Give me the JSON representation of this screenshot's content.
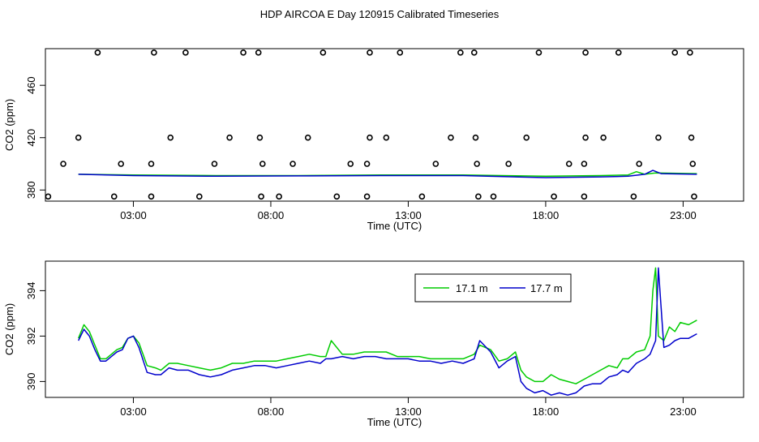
{
  "figure_title": "HDP AIRCOA E  Day 120915  Calibrated Timeseries",
  "colors": {
    "series_a": "#00cc00",
    "series_b": "#0000cc",
    "axis": "#000000"
  },
  "chart_data": [
    {
      "type": "scatter",
      "xlabel": "Time (UTC)",
      "ylabel": "CO2 (ppm)",
      "xlim": [
        -0.2,
        25.2
      ],
      "ylim": [
        371.5,
        488
      ],
      "x_ticks": [
        {
          "value": 3,
          "label": "03:00"
        },
        {
          "value": 8,
          "label": "08:00"
        },
        {
          "value": 13,
          "label": "13:00"
        },
        {
          "value": 18,
          "label": "18:00"
        },
        {
          "value": 23,
          "label": "23:00"
        }
      ],
      "y_ticks": [
        {
          "value": 380,
          "label": "380"
        },
        {
          "value": 420,
          "label": "420"
        },
        {
          "value": 460,
          "label": "460"
        }
      ],
      "lines": [
        {
          "name": "",
          "color": "#00cc00",
          "x": [
            1,
            3,
            6,
            9,
            12,
            15,
            18,
            20,
            21,
            21.3,
            21.6,
            22,
            23.5
          ],
          "y": [
            392,
            391.5,
            391,
            391,
            391.5,
            391.5,
            390.5,
            391,
            391.5,
            394,
            392,
            393,
            392.5
          ]
        },
        {
          "name": "",
          "color": "#0000cc",
          "x": [
            1,
            3,
            6,
            9,
            12,
            15,
            18,
            20,
            21,
            21.6,
            21.9,
            22.2,
            23.5
          ],
          "y": [
            392,
            391,
            390.5,
            390.8,
            391,
            391,
            389.5,
            390,
            390.5,
            392,
            395,
            392.5,
            392
          ]
        }
      ],
      "points": [
        {
          "x": 1.7,
          "y": 485
        },
        {
          "x": 3.75,
          "y": 485
        },
        {
          "x": 4.9,
          "y": 485
        },
        {
          "x": 7.0,
          "y": 485
        },
        {
          "x": 7.55,
          "y": 485
        },
        {
          "x": 9.9,
          "y": 485
        },
        {
          "x": 11.6,
          "y": 485
        },
        {
          "x": 12.7,
          "y": 485
        },
        {
          "x": 14.9,
          "y": 485
        },
        {
          "x": 15.4,
          "y": 485
        },
        {
          "x": 17.75,
          "y": 485
        },
        {
          "x": 19.45,
          "y": 485
        },
        {
          "x": 20.65,
          "y": 485
        },
        {
          "x": 22.7,
          "y": 485
        },
        {
          "x": 23.25,
          "y": 485
        },
        {
          "x": 1.0,
          "y": 420
        },
        {
          "x": 4.35,
          "y": 420
        },
        {
          "x": 6.5,
          "y": 420
        },
        {
          "x": 7.6,
          "y": 420
        },
        {
          "x": 9.35,
          "y": 420
        },
        {
          "x": 11.6,
          "y": 420
        },
        {
          "x": 12.2,
          "y": 420
        },
        {
          "x": 14.55,
          "y": 420
        },
        {
          "x": 15.45,
          "y": 420
        },
        {
          "x": 17.3,
          "y": 420
        },
        {
          "x": 19.45,
          "y": 420
        },
        {
          "x": 20.1,
          "y": 420
        },
        {
          "x": 22.1,
          "y": 420
        },
        {
          "x": 23.3,
          "y": 420
        },
        {
          "x": 0.45,
          "y": 400
        },
        {
          "x": 2.55,
          "y": 400
        },
        {
          "x": 3.65,
          "y": 400
        },
        {
          "x": 5.95,
          "y": 400
        },
        {
          "x": 7.7,
          "y": 400
        },
        {
          "x": 8.8,
          "y": 400
        },
        {
          "x": 10.9,
          "y": 400
        },
        {
          "x": 11.5,
          "y": 400
        },
        {
          "x": 14.0,
          "y": 400
        },
        {
          "x": 15.5,
          "y": 400
        },
        {
          "x": 16.65,
          "y": 400
        },
        {
          "x": 18.85,
          "y": 400
        },
        {
          "x": 19.4,
          "y": 400
        },
        {
          "x": 21.4,
          "y": 400
        },
        {
          "x": 23.35,
          "y": 400
        },
        {
          "x": -0.1,
          "y": 375
        },
        {
          "x": 2.3,
          "y": 375
        },
        {
          "x": 3.65,
          "y": 375
        },
        {
          "x": 5.4,
          "y": 375
        },
        {
          "x": 7.65,
          "y": 375
        },
        {
          "x": 8.3,
          "y": 375
        },
        {
          "x": 10.4,
          "y": 375
        },
        {
          "x": 11.5,
          "y": 375
        },
        {
          "x": 13.5,
          "y": 375
        },
        {
          "x": 15.55,
          "y": 375
        },
        {
          "x": 16.1,
          "y": 375
        },
        {
          "x": 18.3,
          "y": 375
        },
        {
          "x": 19.4,
          "y": 375
        },
        {
          "x": 21.2,
          "y": 375
        },
        {
          "x": 23.4,
          "y": 375
        }
      ]
    },
    {
      "type": "line",
      "xlabel": "Time (UTC)",
      "ylabel": "CO2 (ppm)",
      "xlim": [
        -0.2,
        25.2
      ],
      "ylim": [
        389.3,
        395.3
      ],
      "x_ticks": [
        {
          "value": 3,
          "label": "03:00"
        },
        {
          "value": 8,
          "label": "08:00"
        },
        {
          "value": 13,
          "label": "13:00"
        },
        {
          "value": 18,
          "label": "18:00"
        },
        {
          "value": 23,
          "label": "23:00"
        }
      ],
      "y_ticks": [
        {
          "value": 390,
          "label": "390"
        },
        {
          "value": 392,
          "label": "392"
        },
        {
          "value": 394,
          "label": "394"
        }
      ],
      "legend_position": "top-center",
      "series": [
        {
          "name": "17.1 m",
          "color": "#00cc00",
          "x": [
            1.0,
            1.2,
            1.4,
            1.6,
            1.8,
            2.0,
            2.2,
            2.4,
            2.6,
            2.8,
            3.0,
            3.2,
            3.5,
            3.8,
            4.0,
            4.3,
            4.6,
            5.0,
            5.4,
            5.8,
            6.2,
            6.6,
            7.0,
            7.4,
            7.8,
            8.2,
            8.6,
            9.0,
            9.4,
            9.8,
            10.0,
            10.2,
            10.6,
            11.0,
            11.4,
            11.8,
            12.2,
            12.6,
            13.0,
            13.4,
            13.8,
            14.2,
            14.6,
            15.0,
            15.4,
            15.6,
            16.0,
            16.3,
            16.6,
            16.9,
            17.1,
            17.3,
            17.6,
            17.9,
            18.2,
            18.5,
            18.8,
            19.1,
            19.4,
            19.7,
            20.0,
            20.3,
            20.6,
            20.8,
            21.0,
            21.3,
            21.6,
            21.8,
            21.9,
            22.0,
            22.1,
            22.3,
            22.5,
            22.7,
            22.9,
            23.2,
            23.5
          ],
          "y": [
            391.9,
            392.5,
            392.2,
            391.6,
            391.0,
            391.0,
            391.2,
            391.4,
            391.5,
            391.9,
            392.0,
            391.7,
            390.7,
            390.6,
            390.5,
            390.8,
            390.8,
            390.7,
            390.6,
            390.5,
            390.6,
            390.8,
            390.8,
            390.9,
            390.9,
            390.9,
            391.0,
            391.1,
            391.2,
            391.1,
            391.1,
            391.8,
            391.2,
            391.2,
            391.3,
            391.3,
            391.3,
            391.1,
            391.1,
            391.1,
            391.0,
            391.0,
            391.0,
            391.0,
            391.2,
            391.6,
            391.4,
            390.9,
            391.0,
            391.3,
            390.5,
            390.2,
            390.0,
            390.0,
            390.3,
            390.1,
            390.0,
            389.9,
            390.1,
            390.3,
            390.5,
            390.7,
            390.6,
            391.0,
            391.0,
            391.3,
            391.4,
            392.0,
            394.0,
            395.0,
            392.0,
            391.8,
            392.4,
            392.2,
            392.6,
            392.5,
            392.7
          ]
        },
        {
          "name": "17.7 m",
          "color": "#0000cc",
          "x": [
            1.0,
            1.2,
            1.4,
            1.6,
            1.8,
            2.0,
            2.2,
            2.4,
            2.6,
            2.8,
            3.0,
            3.2,
            3.5,
            3.8,
            4.0,
            4.3,
            4.6,
            5.0,
            5.4,
            5.8,
            6.2,
            6.6,
            7.0,
            7.4,
            7.8,
            8.2,
            8.6,
            9.0,
            9.4,
            9.8,
            10.0,
            10.2,
            10.6,
            11.0,
            11.4,
            11.8,
            12.2,
            12.6,
            13.0,
            13.4,
            13.8,
            14.2,
            14.6,
            15.0,
            15.4,
            15.6,
            16.0,
            16.3,
            16.6,
            16.9,
            17.1,
            17.3,
            17.6,
            17.9,
            18.2,
            18.5,
            18.8,
            19.1,
            19.4,
            19.7,
            20.0,
            20.3,
            20.6,
            20.8,
            21.0,
            21.3,
            21.6,
            21.8,
            21.9,
            22.0,
            22.1,
            22.3,
            22.5,
            22.7,
            22.9,
            23.2,
            23.5
          ],
          "y": [
            391.8,
            392.3,
            392.0,
            391.4,
            390.9,
            390.9,
            391.1,
            391.3,
            391.4,
            391.9,
            392.0,
            391.5,
            390.4,
            390.3,
            390.3,
            390.6,
            390.5,
            390.5,
            390.3,
            390.2,
            390.3,
            390.5,
            390.6,
            390.7,
            390.7,
            390.6,
            390.7,
            390.8,
            390.9,
            390.8,
            391.0,
            391.0,
            391.1,
            391.0,
            391.1,
            391.1,
            391.0,
            391.0,
            391.0,
            390.9,
            390.9,
            390.8,
            390.9,
            390.8,
            391.0,
            391.8,
            391.3,
            390.6,
            390.9,
            391.1,
            390.0,
            389.7,
            389.5,
            389.6,
            389.4,
            389.5,
            389.4,
            389.5,
            389.8,
            389.9,
            389.9,
            390.2,
            390.3,
            390.5,
            390.4,
            390.8,
            391.0,
            391.2,
            391.5,
            391.8,
            395.0,
            391.5,
            391.6,
            391.8,
            391.9,
            391.9,
            392.1
          ]
        }
      ]
    }
  ]
}
